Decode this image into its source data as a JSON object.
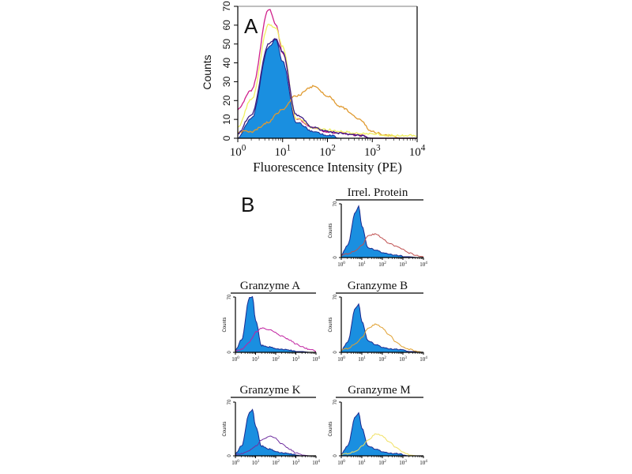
{
  "chart_data": [
    {
      "type": "area",
      "panel_label": "A",
      "xlabel": "Fluorescence Intensity (PE)",
      "ylabel": "Counts",
      "xscale": "log",
      "xlim": [
        1,
        10000
      ],
      "ylim": [
        0,
        70
      ],
      "yticks": [
        "0",
        "10",
        "20",
        "30",
        "40",
        "50",
        "60",
        "70"
      ],
      "xticks": [
        "10^0",
        "10^1",
        "10^2",
        "10^3",
        "10^4"
      ],
      "grid": false,
      "x": [
        1,
        2,
        5,
        7,
        10,
        20,
        50,
        100,
        200,
        500,
        1000,
        2000,
        5000,
        10000
      ],
      "series": [
        {
          "color": "#1a8fe0",
          "filled": true,
          "values": [
            0,
            10,
            48,
            52,
            40,
            8,
            3,
            1,
            0,
            0,
            0,
            0,
            0,
            0
          ]
        },
        {
          "color": "#e09a30",
          "filled": false,
          "values": [
            3,
            3,
            8,
            12,
            15,
            22,
            27,
            22,
            16,
            10,
            3,
            1,
            0,
            0
          ]
        },
        {
          "color": "#d0208a",
          "filled": false,
          "values": [
            15,
            25,
            68,
            60,
            45,
            10,
            5,
            3,
            2,
            1,
            0,
            0,
            0,
            0
          ]
        },
        {
          "color": "#f0f060",
          "filled": false,
          "values": [
            5,
            20,
            60,
            58,
            48,
            10,
            5,
            4,
            3,
            2,
            2,
            1,
            1,
            1
          ]
        },
        {
          "color": "#3a1a80",
          "filled": false,
          "values": [
            2,
            12,
            50,
            52,
            45,
            12,
            5,
            3,
            2,
            1,
            0,
            0,
            0,
            0
          ]
        }
      ]
    },
    {
      "type": "area",
      "panel_label": "B",
      "title": "Irrel. Protein",
      "ylabel": "Counts",
      "xscale": "log",
      "xlim": [
        1,
        10000
      ],
      "ylim": [
        0,
        70
      ],
      "yticks": [
        "0",
        "70"
      ],
      "xticks": [
        "10^0",
        "10^1",
        "10^2",
        "10^3",
        "10^4"
      ],
      "x": [
        1,
        2,
        5,
        7,
        10,
        20,
        50,
        100,
        200,
        500,
        1000,
        2000,
        5000,
        10000
      ],
      "series": [
        {
          "color": "#1a8fe0",
          "filled": true,
          "values": [
            3,
            15,
            58,
            66,
            40,
            12,
            9,
            6,
            4,
            2,
            1,
            1,
            0,
            0
          ]
        },
        {
          "color": "#c05050",
          "filled": false,
          "values": [
            2,
            4,
            8,
            12,
            15,
            28,
            30,
            24,
            18,
            14,
            10,
            5,
            2,
            1
          ]
        }
      ]
    },
    {
      "type": "area",
      "title": "Granzyme A",
      "ylabel": "Counts",
      "xscale": "log",
      "xlim": [
        1,
        10000
      ],
      "ylim": [
        0,
        70
      ],
      "yticks": [
        "0",
        "70"
      ],
      "xticks": [
        "10^0",
        "10^1",
        "10^2",
        "10^3",
        "10^4"
      ],
      "x": [
        1,
        2,
        5,
        7,
        10,
        20,
        50,
        100,
        200,
        500,
        1000,
        2000,
        5000,
        10000
      ],
      "series": [
        {
          "color": "#1a8fe0",
          "filled": true,
          "values": [
            2,
            15,
            68,
            70,
            40,
            8,
            6,
            4,
            3,
            2,
            1,
            1,
            0,
            0
          ]
        },
        {
          "color": "#c020a0",
          "filled": false,
          "values": [
            1,
            3,
            12,
            18,
            25,
            30,
            28,
            24,
            20,
            15,
            10,
            6,
            3,
            1
          ]
        }
      ]
    },
    {
      "type": "area",
      "title": "Granzyme B",
      "ylabel": "Counts",
      "xscale": "log",
      "xlim": [
        1,
        10000
      ],
      "ylim": [
        0,
        70
      ],
      "yticks": [
        "0",
        "70"
      ],
      "xticks": [
        "10^0",
        "10^1",
        "10^2",
        "10^3",
        "10^4"
      ],
      "x": [
        1,
        2,
        5,
        7,
        10,
        20,
        50,
        100,
        200,
        500,
        1000,
        2000,
        5000,
        10000
      ],
      "series": [
        {
          "color": "#1a8fe0",
          "filled": true,
          "values": [
            2,
            12,
            55,
            60,
            38,
            14,
            9,
            6,
            4,
            3,
            2,
            1,
            1,
            0
          ]
        },
        {
          "color": "#e0a030",
          "filled": false,
          "values": [
            2,
            4,
            10,
            14,
            18,
            30,
            35,
            30,
            22,
            12,
            6,
            3,
            1,
            0
          ]
        }
      ]
    },
    {
      "type": "area",
      "title": "Granzyme K",
      "ylabel": "Counts",
      "xscale": "log",
      "xlim": [
        1,
        10000
      ],
      "ylim": [
        0,
        70
      ],
      "yticks": [
        "0",
        "70"
      ],
      "xticks": [
        "10^0",
        "10^1",
        "10^2",
        "10^3",
        "10^4"
      ],
      "x": [
        1,
        2,
        5,
        7,
        10,
        20,
        50,
        100,
        200,
        500,
        1000,
        2000,
        5000,
        10000
      ],
      "series": [
        {
          "color": "#1a8fe0",
          "filled": true,
          "values": [
            2,
            12,
            55,
            60,
            38,
            12,
            8,
            5,
            3,
            2,
            1,
            0,
            0,
            0
          ]
        },
        {
          "color": "#7030a0",
          "filled": false,
          "values": [
            1,
            2,
            6,
            9,
            12,
            20,
            25,
            22,
            15,
            8,
            3,
            1,
            0,
            0
          ]
        }
      ]
    },
    {
      "type": "area",
      "title": "Granzyme M",
      "ylabel": "Counts",
      "xscale": "log",
      "xlim": [
        1,
        10000
      ],
      "ylim": [
        0,
        70
      ],
      "yticks": [
        "0",
        "70"
      ],
      "xticks": [
        "10^0",
        "10^1",
        "10^2",
        "10^3",
        "10^4"
      ],
      "x": [
        1,
        2,
        5,
        7,
        10,
        20,
        50,
        100,
        200,
        500,
        1000,
        2000,
        5000,
        10000
      ],
      "series": [
        {
          "color": "#1a8fe0",
          "filled": true,
          "values": [
            2,
            12,
            50,
            55,
            35,
            12,
            8,
            5,
            3,
            2,
            1,
            0,
            0,
            0
          ]
        },
        {
          "color": "#f0e060",
          "filled": false,
          "values": [
            1,
            2,
            5,
            8,
            12,
            20,
            28,
            25,
            18,
            10,
            4,
            1,
            0,
            0
          ]
        }
      ]
    }
  ]
}
